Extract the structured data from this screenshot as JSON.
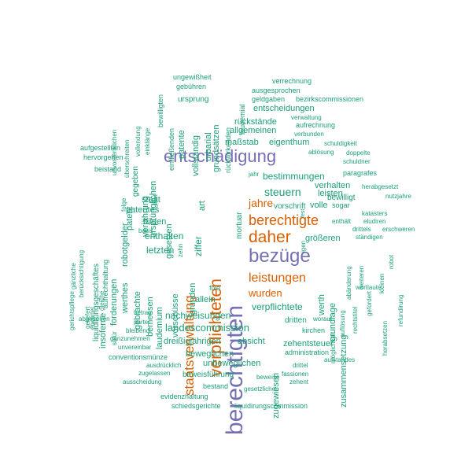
{
  "word_cloud": {
    "palette": {
      "green": "#1b9e77",
      "orange": "#d95f02",
      "purple": "#7570b3"
    },
    "words": [
      {
        "text": "berechtigten",
        "color": "#7570b3"
      },
      {
        "text": "entschädigung",
        "color": "#7570b3"
      },
      {
        "text": "bezüge",
        "color": "#7570b3"
      },
      {
        "text": "verpflichteten",
        "color": "#d95f02"
      },
      {
        "text": "daher",
        "color": "#d95f02"
      },
      {
        "text": "berechtigte",
        "color": "#d95f02"
      },
      {
        "text": "staatsverwaltung",
        "color": "#d95f02"
      },
      {
        "text": "leistungen",
        "color": "#d95f02"
      },
      {
        "text": "jahre",
        "color": "#d95f02"
      },
      {
        "text": "wurden",
        "color": "#d95f02"
      },
      {
        "text": "steuern",
        "color": "#1b9e77"
      },
      {
        "text": "bestimmungen",
        "color": "#1b9e77"
      },
      {
        "text": "verpflichtete",
        "color": "#1b9e77"
      },
      {
        "text": "landescommission",
        "color": "#1b9e77"
      },
      {
        "text": "nachweisungen",
        "color": "#1b9e77"
      },
      {
        "text": "enthalten",
        "color": "#1b9e77"
      },
      {
        "text": "dreißigjährigen",
        "color": "#1b9e77"
      },
      {
        "text": "absicht",
        "color": "#1b9e77"
      },
      {
        "text": "gesetzen",
        "color": "#1b9e77"
      },
      {
        "text": "ziffer",
        "color": "#1b9e77"
      },
      {
        "text": "maßstab",
        "color": "#1b9e77"
      },
      {
        "text": "eigenthum",
        "color": "#1b9e77"
      },
      {
        "text": "allgemeinen",
        "color": "#1b9e77"
      },
      {
        "text": "rückstände",
        "color": "#1b9e77"
      },
      {
        "text": "entscheidungen",
        "color": "#1b9e77"
      },
      {
        "text": "vorschrift",
        "color": "#1b9e77"
      },
      {
        "text": "volle",
        "color": "#1b9e77"
      },
      {
        "text": "größeren",
        "color": "#1b9e77"
      },
      {
        "text": "verhalten",
        "color": "#1b9e77"
      },
      {
        "text": "leisten",
        "color": "#1b9e77"
      },
      {
        "text": "bewilligt",
        "color": "#1b9e77"
      },
      {
        "text": "dritten",
        "color": "#1b9e77"
      },
      {
        "text": "zehentsteuer",
        "color": "#1b9e77"
      },
      {
        "text": "kirchen",
        "color": "#1b9e77"
      },
      {
        "text": "administration",
        "color": "#1b9e77"
      },
      {
        "text": "unbeweglichen",
        "color": "#1b9e77"
      },
      {
        "text": "beweglichen",
        "color": "#1b9e77"
      },
      {
        "text": "allein",
        "color": "#1b9e77"
      },
      {
        "text": "fixe",
        "color": "#1b9e77"
      },
      {
        "text": "gründen",
        "color": "#1b9e77"
      },
      {
        "text": "vorschüsse",
        "color": "#1b9e77"
      },
      {
        "text": "letzten",
        "color": "#1b9e77"
      },
      {
        "text": "bilden",
        "color": "#1b9e77"
      },
      {
        "text": "patentes",
        "color": "#1b9e77"
      },
      {
        "text": "staat",
        "color": "#1b9e77"
      },
      {
        "text": "zugewiesen",
        "color": "#1b9e77"
      },
      {
        "text": "werth",
        "color": "#1b9e77"
      },
      {
        "text": "grundlage",
        "color": "#1b9e77"
      },
      {
        "text": "zusammensetzung",
        "color": "#1b9e77"
      },
      {
        "text": "beweisführung",
        "color": "#1b9e77"
      },
      {
        "text": "bestand",
        "color": "#1b9e77"
      },
      {
        "text": "evidenzhaltung",
        "color": "#1b9e77"
      },
      {
        "text": "schiedsgerichte",
        "color": "#1b9e77"
      },
      {
        "text": "liquidirungscommission",
        "color": "#1b9e77"
      },
      {
        "text": "gesetzlichen",
        "color": "#1b9e77"
      },
      {
        "text": "zehent",
        "color": "#1b9e77"
      },
      {
        "text": "beweise",
        "color": "#1b9e77"
      },
      {
        "text": "fassionen",
        "color": "#1b9e77"
      },
      {
        "text": "drittel",
        "color": "#1b9e77"
      },
      {
        "text": "aufstandes",
        "color": "#1b9e77"
      },
      {
        "text": "worauf",
        "color": "#1b9e77"
      },
      {
        "text": "ausscheidung",
        "color": "#1b9e77"
      },
      {
        "text": "zugelassen",
        "color": "#1b9e77"
      },
      {
        "text": "ausdrücklich",
        "color": "#1b9e77"
      },
      {
        "text": "conventionsmünze",
        "color": "#1b9e77"
      },
      {
        "text": "unvereinbar",
        "color": "#1b9e77"
      },
      {
        "text": "ganzunehmen",
        "color": "#1b9e77"
      },
      {
        "text": "bleibend",
        "color": "#1b9e77"
      },
      {
        "text": "partei",
        "color": "#1b9e77"
      },
      {
        "text": "betrag",
        "color": "#1b9e77"
      },
      {
        "text": "abgesehen",
        "color": "#1b9e77"
      },
      {
        "text": "bemessen",
        "color": "#1b9e77"
      },
      {
        "text": "laudemium",
        "color": "#1b9e77"
      },
      {
        "text": "gebrachte",
        "color": "#1b9e77"
      },
      {
        "text": "forderungen",
        "color": "#1b9e77"
      },
      {
        "text": "robotgelder",
        "color": "#1b9e77"
      },
      {
        "text": "insoferne",
        "color": "#1b9e77"
      },
      {
        "text": "werthes",
        "color": "#1b9e77"
      },
      {
        "text": "verjährung",
        "color": "#1b9e77"
      },
      {
        "text": "patent",
        "color": "#1b9e77"
      },
      {
        "text": "ursprünglichen",
        "color": "#1b9e77"
      },
      {
        "text": "gegeben",
        "color": "#1b9e77"
      },
      {
        "text": "urbarial",
        "color": "#1b9e77"
      },
      {
        "text": "vollständig",
        "color": "#1b9e77"
      },
      {
        "text": "patente",
        "color": "#1b9e77"
      },
      {
        "text": "einfließenden",
        "color": "#1b9e77"
      },
      {
        "text": "grundsätzen",
        "color": "#1b9e77"
      },
      {
        "text": "rückwirkenden",
        "color": "#1b9e77"
      },
      {
        "text": "laudemial",
        "color": "#1b9e77"
      },
      {
        "text": "ursprung",
        "color": "#1b9e77"
      },
      {
        "text": "gebühren",
        "color": "#1b9e77"
      },
      {
        "text": "ungewißheit",
        "color": "#1b9e77"
      },
      {
        "text": "bewilligten",
        "color": "#1b9e77"
      },
      {
        "text": "verrechnung",
        "color": "#1b9e77"
      },
      {
        "text": "ausgesprochen",
        "color": "#1b9e77"
      },
      {
        "text": "geldgaben",
        "color": "#1b9e77"
      },
      {
        "text": "bezirkscommissionen",
        "color": "#1b9e77"
      },
      {
        "text": "verwaltung",
        "color": "#1b9e77"
      },
      {
        "text": "aufrechnung",
        "color": "#1b9e77"
      },
      {
        "text": "verbunden",
        "color": "#1b9e77"
      },
      {
        "text": "schuldigkeit",
        "color": "#1b9e77"
      },
      {
        "text": "ablösung",
        "color": "#1b9e77"
      },
      {
        "text": "doppelte",
        "color": "#1b9e77"
      },
      {
        "text": "schuldner",
        "color": "#1b9e77"
      },
      {
        "text": "paragrafes",
        "color": "#1b9e77"
      },
      {
        "text": "herabgesetzt",
        "color": "#1b9e77"
      },
      {
        "text": "nutzjahre",
        "color": "#1b9e77"
      },
      {
        "text": "katasters",
        "color": "#1b9e77"
      },
      {
        "text": "enthält",
        "color": "#1b9e77"
      },
      {
        "text": "eludiren",
        "color": "#1b9e77"
      },
      {
        "text": "drittels",
        "color": "#1b9e77"
      },
      {
        "text": "erschweren",
        "color": "#1b9e77"
      },
      {
        "text": "ständigen",
        "color": "#1b9e77"
      },
      {
        "text": "sogar",
        "color": "#1b9e77"
      },
      {
        "text": "fest",
        "color": "#1b9e77"
      },
      {
        "text": "jahr",
        "color": "#1b9e77"
      },
      {
        "text": "mortuar",
        "color": "#1b9e77"
      },
      {
        "text": "art",
        "color": "#1b9e77"
      },
      {
        "text": "igen",
        "color": "#1b9e77"
      },
      {
        "text": "zehn",
        "color": "#1b9e77"
      },
      {
        "text": "basis",
        "color": "#1b9e77"
      },
      {
        "text": "wortlaute",
        "color": "#1b9e77"
      },
      {
        "text": "rechtstitel",
        "color": "#1b9e77"
      },
      {
        "text": "herabsetzen",
        "color": "#1b9e77"
      },
      {
        "text": "refundirung",
        "color": "#1b9e77"
      },
      {
        "text": "kleinen",
        "color": "#1b9e77"
      },
      {
        "text": "robot",
        "color": "#1b9e77"
      },
      {
        "text": "gefordert",
        "color": "#1b9e77"
      },
      {
        "text": "auflösung",
        "color": "#1b9e77"
      },
      {
        "text": "möglichkeit",
        "color": "#1b9e77"
      },
      {
        "text": "abänderung",
        "color": "#1b9e77"
      },
      {
        "text": "weiteren",
        "color": "#1b9e77"
      },
      {
        "text": "beistand",
        "color": "#1b9e77"
      },
      {
        "text": "hervorgehen",
        "color": "#1b9e77"
      },
      {
        "text": "aufgestellten",
        "color": "#1b9e77"
      },
      {
        "text": "unvordenklichen",
        "color": "#1b9e77"
      },
      {
        "text": "überschreiten",
        "color": "#1b9e77"
      },
      {
        "text": "vollendung",
        "color": "#1b9e77"
      },
      {
        "text": "einklänge",
        "color": "#1b9e77"
      },
      {
        "text": "liquidirungsgeschäftes",
        "color": "#1b9e77"
      },
      {
        "text": "aufrechthaltung",
        "color": "#1b9e77"
      },
      {
        "text": "berücksichtigung",
        "color": "#1b9e77"
      },
      {
        "text": "gänzliche",
        "color": "#1b9e77"
      },
      {
        "text": "gerichtspflege",
        "color": "#1b9e77"
      },
      {
        "text": "gleiche",
        "color": "#1b9e77"
      },
      {
        "text": "erwartet",
        "color": "#1b9e77"
      },
      {
        "text": "geliefert",
        "color": "#1b9e77"
      },
      {
        "text": "sofür",
        "color": "#1b9e77"
      },
      {
        "text": "laut",
        "color": "#1b9e77"
      },
      {
        "text": "folge",
        "color": "#1b9e77"
      }
    ]
  }
}
